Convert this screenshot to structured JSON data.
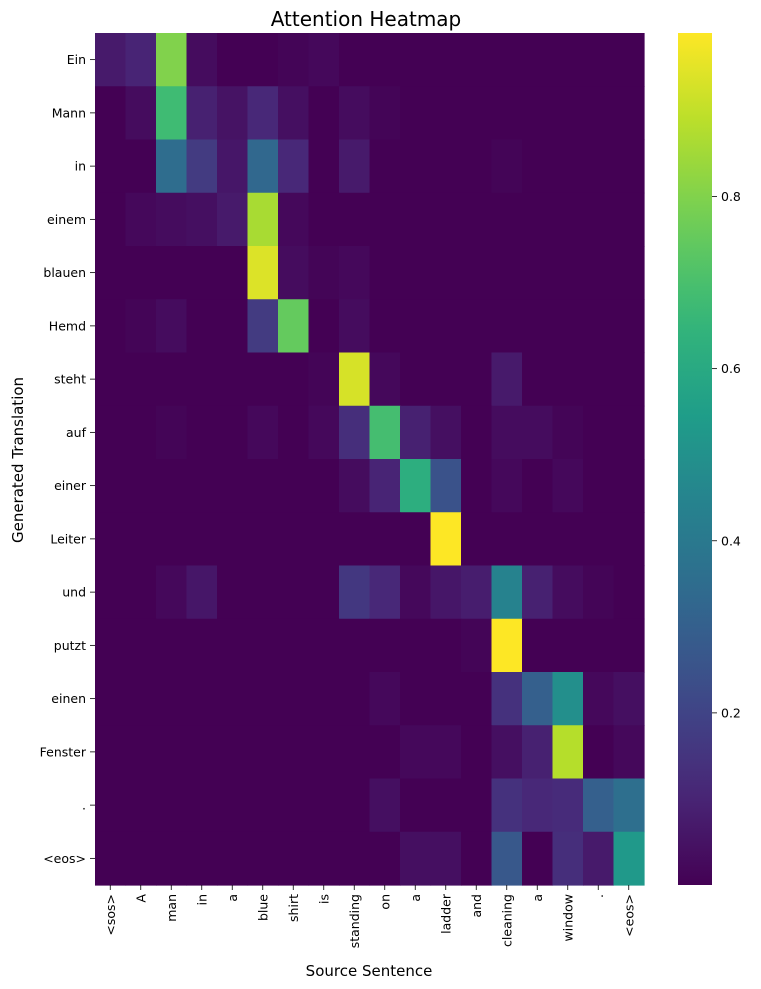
{
  "chart_data": {
    "type": "heatmap",
    "title": "Attention Heatmap",
    "xlabel": "Source Sentence",
    "ylabel": "Generated Translation",
    "x_labels": [
      "<sos>",
      "A",
      "man",
      "in",
      "a",
      "blue",
      "shirt",
      "is",
      "standing",
      "on",
      "a",
      "ladder",
      "and",
      "cleaning",
      "a",
      "window",
      ".",
      "<eos>"
    ],
    "y_labels": [
      "Ein",
      "Mann",
      "in",
      "einem",
      "blauen",
      "Hemd",
      "steht",
      "auf",
      "einer",
      "Leiter",
      "und",
      "putzt",
      "einen",
      "Fenster",
      ".",
      "<eos>"
    ],
    "colormap": "viridis",
    "vmin": 0.0,
    "vmax": 0.99,
    "colorbar_ticks": [
      0.2,
      0.4,
      0.6,
      0.8
    ],
    "colorbar_tick_labels": [
      "0.2",
      "0.4",
      "0.6",
      "0.8"
    ],
    "values": [
      [
        0.07,
        0.1,
        0.8,
        0.03,
        0.0,
        0.0,
        0.01,
        0.02,
        0.0,
        0.0,
        0.0,
        0.0,
        0.0,
        0.0,
        0.0,
        0.0,
        0.0,
        0.0
      ],
      [
        0.0,
        0.03,
        0.68,
        0.09,
        0.05,
        0.11,
        0.04,
        0.0,
        0.03,
        0.01,
        0.0,
        0.0,
        0.0,
        0.0,
        0.0,
        0.0,
        0.0,
        0.0
      ],
      [
        0.0,
        0.0,
        0.35,
        0.17,
        0.06,
        0.33,
        0.11,
        0.0,
        0.07,
        0.0,
        0.0,
        0.0,
        0.0,
        0.01,
        0.0,
        0.0,
        0.0,
        0.0
      ],
      [
        0.0,
        0.02,
        0.03,
        0.04,
        0.07,
        0.86,
        0.02,
        0.0,
        0.0,
        0.0,
        0.0,
        0.0,
        0.0,
        0.0,
        0.0,
        0.0,
        0.0,
        0.0
      ],
      [
        0.0,
        0.0,
        0.0,
        0.0,
        0.0,
        0.94,
        0.03,
        0.01,
        0.02,
        0.0,
        0.0,
        0.0,
        0.0,
        0.0,
        0.0,
        0.0,
        0.0,
        0.0
      ],
      [
        0.0,
        0.01,
        0.03,
        0.0,
        0.0,
        0.17,
        0.75,
        0.0,
        0.03,
        0.0,
        0.0,
        0.0,
        0.0,
        0.0,
        0.0,
        0.0,
        0.0,
        0.0
      ],
      [
        0.0,
        0.0,
        0.0,
        0.0,
        0.0,
        0.0,
        0.0,
        0.01,
        0.93,
        0.02,
        0.0,
        0.0,
        0.0,
        0.07,
        0.0,
        0.0,
        0.0,
        0.0
      ],
      [
        0.0,
        0.0,
        0.01,
        0.0,
        0.0,
        0.02,
        0.0,
        0.02,
        0.13,
        0.69,
        0.09,
        0.04,
        0.0,
        0.03,
        0.03,
        0.01,
        0.0,
        0.0
      ],
      [
        0.0,
        0.0,
        0.0,
        0.0,
        0.0,
        0.0,
        0.0,
        0.0,
        0.03,
        0.1,
        0.62,
        0.25,
        0.0,
        0.02,
        0.0,
        0.02,
        0.0,
        0.0
      ],
      [
        0.0,
        0.0,
        0.0,
        0.0,
        0.0,
        0.0,
        0.0,
        0.0,
        0.0,
        0.0,
        0.0,
        0.99,
        0.0,
        0.0,
        0.0,
        0.0,
        0.0,
        0.0
      ],
      [
        0.0,
        0.0,
        0.02,
        0.06,
        0.0,
        0.0,
        0.0,
        0.0,
        0.16,
        0.11,
        0.02,
        0.06,
        0.08,
        0.44,
        0.09,
        0.03,
        0.01,
        0.0
      ],
      [
        0.0,
        0.0,
        0.0,
        0.0,
        0.0,
        0.0,
        0.0,
        0.0,
        0.0,
        0.0,
        0.0,
        0.0,
        0.01,
        0.99,
        0.0,
        0.0,
        0.0,
        0.0
      ],
      [
        0.0,
        0.0,
        0.0,
        0.0,
        0.0,
        0.0,
        0.0,
        0.0,
        0.0,
        0.02,
        0.0,
        0.0,
        0.0,
        0.14,
        0.3,
        0.49,
        0.02,
        0.04
      ],
      [
        0.0,
        0.0,
        0.0,
        0.0,
        0.0,
        0.0,
        0.0,
        0.0,
        0.0,
        0.0,
        0.02,
        0.02,
        0.0,
        0.04,
        0.09,
        0.88,
        0.0,
        0.02
      ],
      [
        0.0,
        0.0,
        0.0,
        0.0,
        0.0,
        0.0,
        0.0,
        0.0,
        0.0,
        0.04,
        0.0,
        0.0,
        0.0,
        0.14,
        0.11,
        0.12,
        0.3,
        0.36
      ],
      [
        0.0,
        0.0,
        0.0,
        0.0,
        0.0,
        0.0,
        0.0,
        0.0,
        0.0,
        0.0,
        0.04,
        0.04,
        0.0,
        0.27,
        0.0,
        0.13,
        0.07,
        0.53
      ]
    ]
  }
}
